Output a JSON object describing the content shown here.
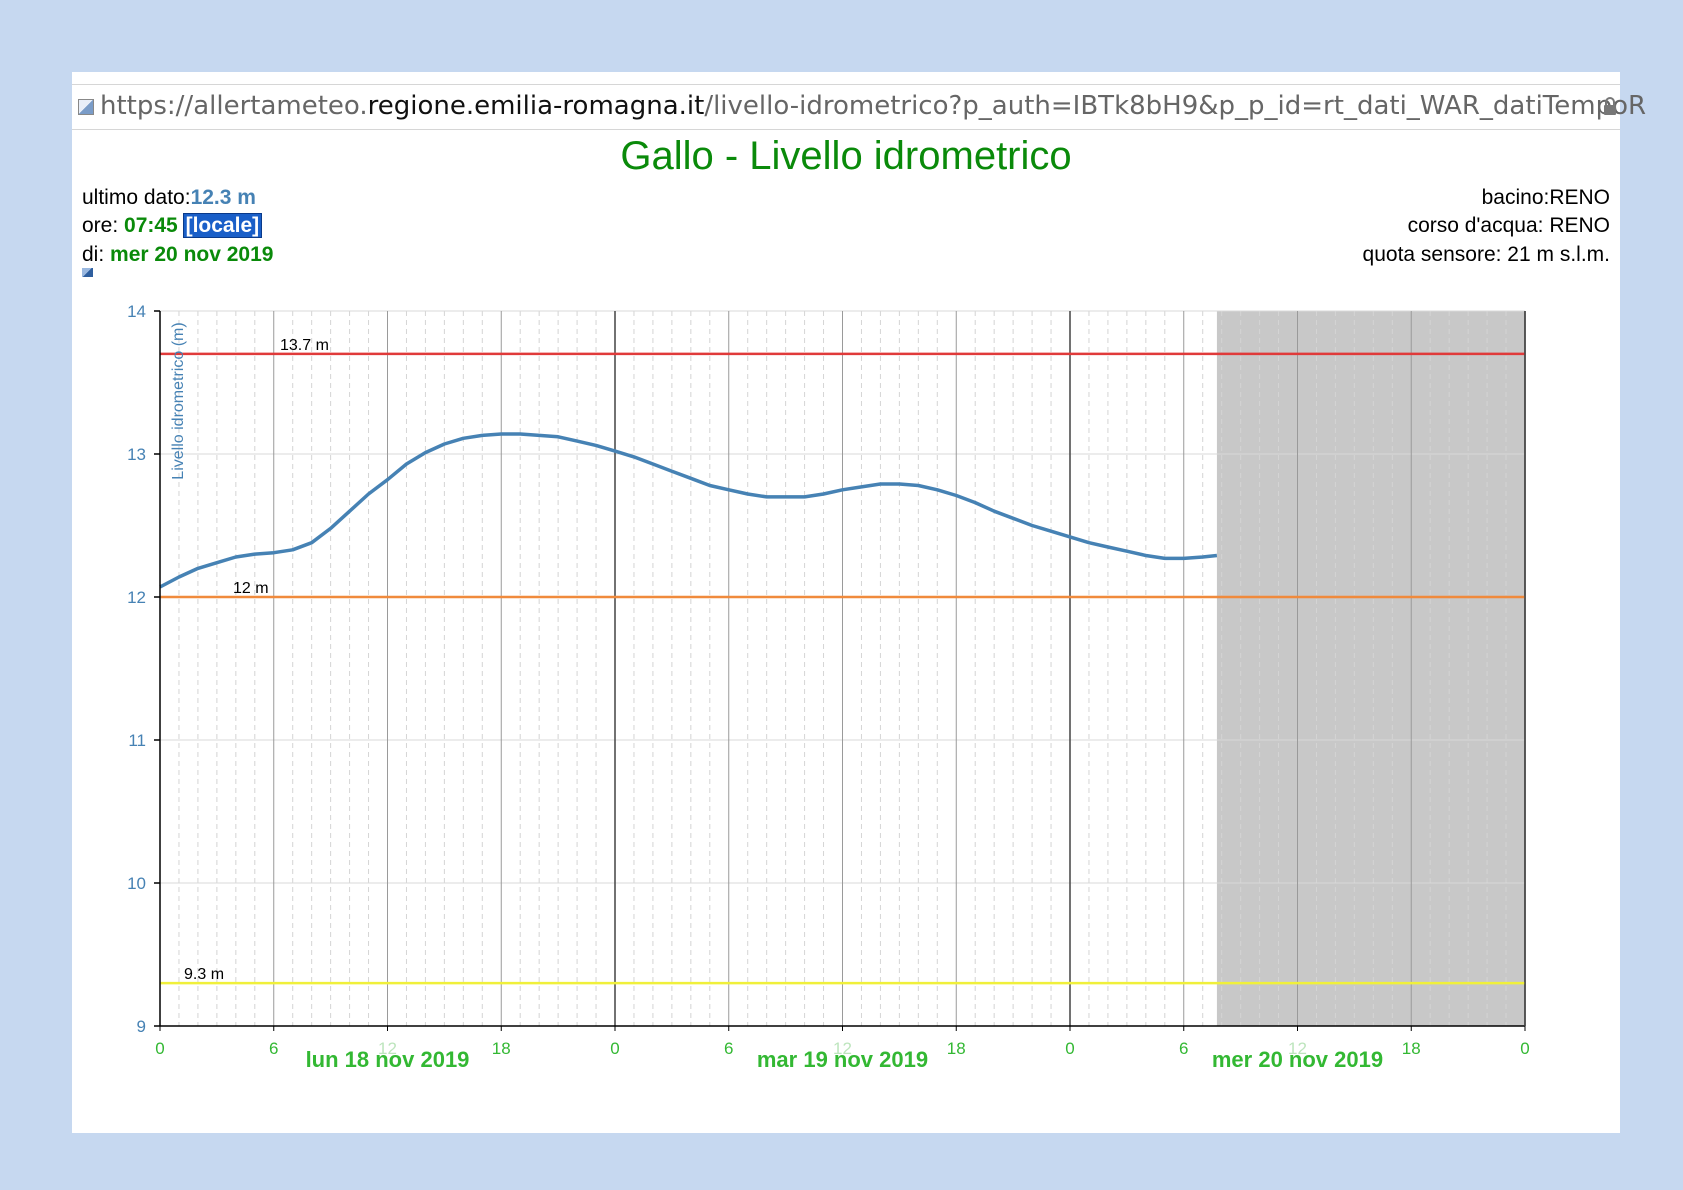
{
  "url": {
    "scheme": "https://",
    "sub": "allertameteo.",
    "domain": "regione.emilia-romagna.it",
    "path": "/livello-idrometrico?p_auth=IBTk8bH9&p_p_id=rt_dati_WAR_datiTempoR"
  },
  "header": {
    "title": "Gallo - Livello idrometrico",
    "last_label": "ultimo dato:",
    "last_value": "12.3 m",
    "time_label": "ore: ",
    "time_value": "07:45",
    "time_badge": "[locale]",
    "date_label": "di: ",
    "date_value": "mer 20 nov 2019",
    "basin": "bacino:RENO",
    "river": "corso d'acqua: RENO",
    "sensor": "quota sensore: 21 m s.l.m."
  },
  "colors": {
    "series": "#4682b4",
    "threshold_red": "#e03a3a",
    "threshold_orange": "#f08a3c",
    "threshold_yellow": "#f0f03a",
    "date_green": "#33b833",
    "forecast_shade": "#c8c8c8"
  },
  "chart_data": {
    "type": "line",
    "ylabel": "Livello idrometrico (m)",
    "ylim": [
      9,
      14
    ],
    "yticks": [
      9,
      10,
      11,
      12,
      13,
      14
    ],
    "xlim_hours": [
      0,
      72
    ],
    "xticks": [
      {
        "h": 0,
        "label": "0"
      },
      {
        "h": 6,
        "label": "6"
      },
      {
        "h": 12,
        "label": "12"
      },
      {
        "h": 18,
        "label": "18"
      },
      {
        "h": 24,
        "label": "0"
      },
      {
        "h": 30,
        "label": "6"
      },
      {
        "h": 36,
        "label": "12"
      },
      {
        "h": 42,
        "label": "18"
      },
      {
        "h": 48,
        "label": "0"
      },
      {
        "h": 54,
        "label": "6"
      },
      {
        "h": 60,
        "label": "12"
      },
      {
        "h": 66,
        "label": "18"
      },
      {
        "h": 72,
        "label": "0"
      }
    ],
    "days": [
      {
        "h": 12,
        "label": "lun 18 nov 2019"
      },
      {
        "h": 36,
        "label": "mar 19 nov 2019"
      },
      {
        "h": 60,
        "label": "mer 20 nov 2019"
      }
    ],
    "thresholds": [
      {
        "value": 13.7,
        "label": "13.7 m",
        "color": "#e03a3a"
      },
      {
        "value": 12,
        "label": "12 m",
        "color": "#f08a3c"
      },
      {
        "value": 9.3,
        "label": "9.3 m",
        "color": "#f0f03a"
      }
    ],
    "shade_from_h": 55.75,
    "series": [
      {
        "x": [
          0,
          1,
          2,
          3,
          4,
          5,
          6,
          7,
          8,
          9,
          10,
          11,
          12,
          13,
          14,
          15,
          16,
          17,
          18,
          19,
          20,
          21,
          22,
          23,
          24,
          25,
          26,
          27,
          28,
          29,
          30,
          31,
          32,
          33,
          34,
          35,
          36,
          37,
          38,
          39,
          40,
          41,
          42,
          43,
          44,
          45,
          46,
          47,
          48,
          49,
          50,
          51,
          52,
          53,
          54,
          55,
          55.75
        ],
        "y": [
          12.07,
          12.14,
          12.2,
          12.24,
          12.28,
          12.3,
          12.31,
          12.33,
          12.38,
          12.48,
          12.6,
          12.72,
          12.82,
          12.93,
          13.01,
          13.07,
          13.11,
          13.13,
          13.14,
          13.14,
          13.13,
          13.12,
          13.09,
          13.06,
          13.02,
          12.98,
          12.93,
          12.88,
          12.83,
          12.78,
          12.75,
          12.72,
          12.7,
          12.7,
          12.7,
          12.72,
          12.75,
          12.77,
          12.79,
          12.79,
          12.78,
          12.75,
          12.71,
          12.66,
          12.6,
          12.55,
          12.5,
          12.46,
          12.42,
          12.38,
          12.35,
          12.32,
          12.29,
          12.27,
          12.27,
          12.28,
          12.29
        ]
      }
    ]
  }
}
